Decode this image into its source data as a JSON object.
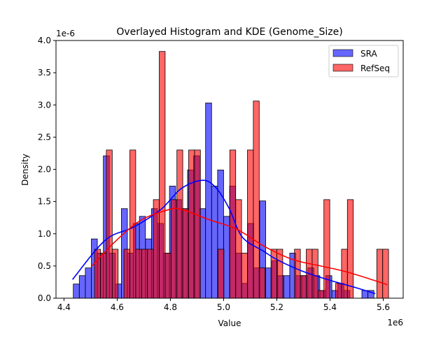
{
  "chart_data": {
    "type": "bar",
    "title": "Overlayed Histogram and KDE (Genome_Size)",
    "xlabel": "Value",
    "ylabel": "Density",
    "x_offset_label": "1e6",
    "y_offset_label": "1e-6",
    "xlim": [
      4.37,
      5.675
    ],
    "ylim": [
      0,
      4.0
    ],
    "x_ticks": [
      "4.4",
      "4.6",
      "4.8",
      "5.0",
      "5.2",
      "5.4",
      "5.6"
    ],
    "x_tick_values": [
      4.4,
      4.6,
      4.8,
      5.0,
      5.2,
      5.4,
      5.6
    ],
    "y_ticks": [
      "0.0",
      "0.5",
      "1.0",
      "1.5",
      "2.0",
      "2.5",
      "3.0",
      "3.5",
      "4.0"
    ],
    "y_tick_values": [
      0,
      0.5,
      1.0,
      1.5,
      2.0,
      2.5,
      3.0,
      3.5,
      4.0
    ],
    "grid": false,
    "legend_placement": "top-right",
    "series": [
      {
        "name": "SRA",
        "color": "#0000ff",
        "fill": "#6666ff",
        "bin_start": 4.435,
        "bin_width": 0.0226,
        "values": [
          0.22,
          0.35,
          0.47,
          0.92,
          0.7,
          2.21,
          0.7,
          0.22,
          1.39,
          0.7,
          1.16,
          1.27,
          0.92,
          1.39,
          1.16,
          0.7,
          1.74,
          1.53,
          1.39,
          1.99,
          2.21,
          1.39,
          3.03,
          1.74,
          1.99,
          1.27,
          1.74,
          0.7,
          0.23,
          1.16,
          0.47,
          1.51,
          0.47,
          0.58,
          0.35,
          0.35,
          0.7,
          0.35,
          0.35,
          0.47,
          0.35,
          0.12,
          0.35,
          0.12,
          0.23,
          0.12,
          0,
          0,
          0.12,
          0.12
        ],
        "kde": {
          "x": [
            4.432,
            4.555,
            4.66,
            4.765,
            4.84,
            4.92,
            4.97,
            5.02,
            5.07,
            5.15,
            5.2,
            5.29,
            5.39,
            5.5,
            5.57
          ],
          "y": [
            0.29,
            0.9,
            1.1,
            1.38,
            1.7,
            1.83,
            1.72,
            1.4,
            0.95,
            0.73,
            0.6,
            0.43,
            0.29,
            0.16,
            0.07
          ]
        }
      },
      {
        "name": "RefSeq",
        "color": "#ff0000",
        "fill": "#ff6666",
        "bin_start": 4.515,
        "bin_width": 0.0221,
        "values": [
          0.76,
          0.7,
          2.3,
          0.76,
          0,
          0.76,
          2.3,
          0.76,
          0.76,
          0.76,
          1.53,
          3.83,
          0.7,
          1.53,
          2.3,
          1.39,
          2.3,
          2.3,
          0,
          0,
          0,
          0.76,
          0,
          2.3,
          1.53,
          0.7,
          2.3,
          3.06,
          0.47,
          0,
          0.76,
          0.76,
          0,
          0,
          0.76,
          0.35,
          0.76,
          0.76,
          0.12,
          1.53,
          0,
          0.23,
          0.76,
          1.53,
          0,
          0,
          0,
          0,
          0.76,
          0.76
        ],
        "kde": {
          "x": [
            4.505,
            4.58,
            4.685,
            4.79,
            4.84,
            4.945,
            5.05,
            5.155,
            5.26,
            5.365,
            5.47,
            5.615
          ],
          "y": [
            0.5,
            0.83,
            1.2,
            1.37,
            1.38,
            1.22,
            1.07,
            0.8,
            0.6,
            0.5,
            0.4,
            0.21
          ]
        }
      }
    ]
  }
}
